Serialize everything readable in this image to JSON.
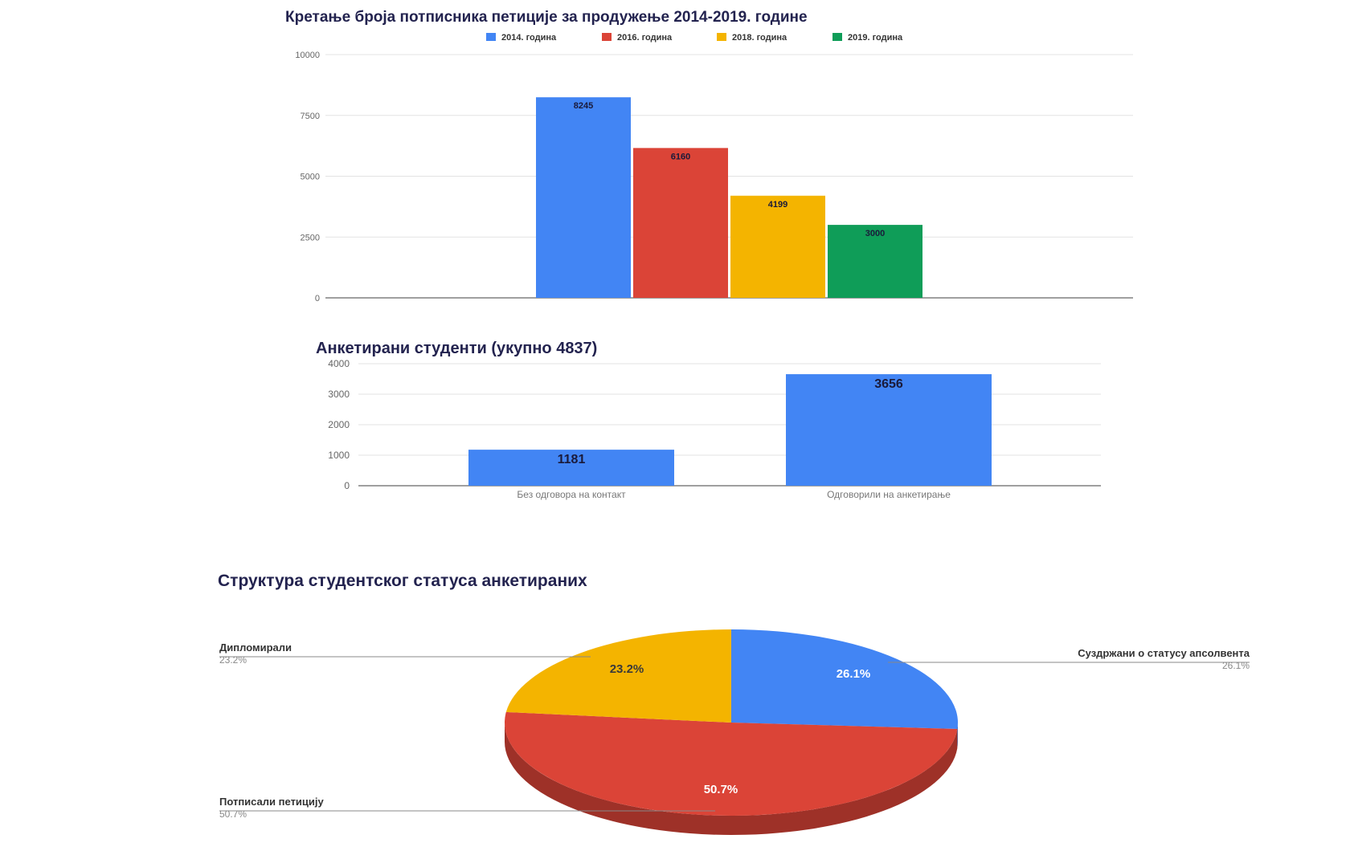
{
  "chart_data": [
    {
      "type": "bar",
      "title": "Кретање броја потписника петиције за продужење 2014-2019. године",
      "categories": [
        ""
      ],
      "series": [
        {
          "name": "2014. година",
          "values": [
            8245
          ],
          "color": "#4285f4"
        },
        {
          "name": "2016. година",
          "values": [
            6160
          ],
          "color": "#db4437"
        },
        {
          "name": "2018. година",
          "values": [
            4199
          ],
          "color": "#f4b400"
        },
        {
          "name": "2019. година",
          "values": [
            3000
          ],
          "color": "#0f9d58"
        }
      ],
      "data_labels": [
        "8245",
        "6160",
        "4199",
        "3000"
      ],
      "ylim": [
        0,
        10000
      ],
      "yticks": [
        "0",
        "2500",
        "5000",
        "7500",
        "10000"
      ],
      "grid": true,
      "legend": "top"
    },
    {
      "type": "bar",
      "title": "Анкетирани студенти (укупно 4837)",
      "categories": [
        "Без одговора на контакт",
        "Одговорили на анкетирање"
      ],
      "values": [
        1181,
        3656
      ],
      "data_labels": [
        "1181",
        "3656"
      ],
      "color": "#4285f4",
      "ylim": [
        0,
        4000
      ],
      "yticks": [
        "0",
        "1000",
        "2000",
        "3000",
        "4000"
      ],
      "grid": true
    },
    {
      "type": "pie",
      "title": "Структура студентског статуса анкетираних",
      "slices": [
        {
          "label": "Суздржани о статусу апсолвента",
          "value": 26.1,
          "pct_label": "26.1%",
          "color": "#4285f4"
        },
        {
          "label": "Потписали петицију",
          "value": 50.7,
          "pct_label": "50.7%",
          "color": "#db4437"
        },
        {
          "label": "Дипломирали",
          "value": 23.2,
          "pct_label": "23.2%",
          "color": "#f4b400"
        }
      ],
      "style": "3d"
    }
  ]
}
